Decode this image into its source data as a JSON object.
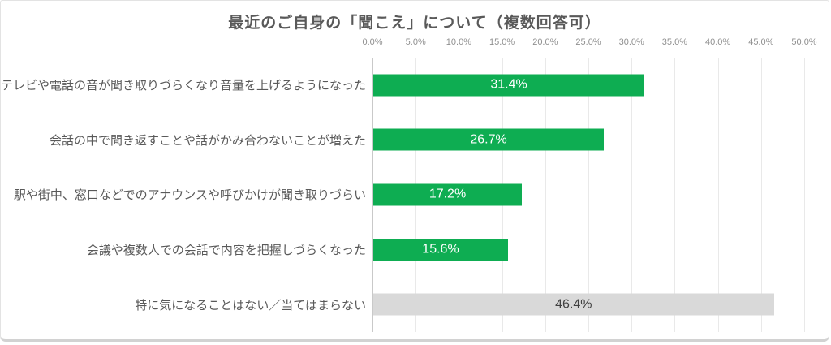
{
  "title": "最近のご自身の「聞こえ」について（複数回答可）",
  "colors": {
    "bar_green": "#0ead52",
    "bar_gray": "#d9d9d9",
    "value_label_on_green": "#ffffff",
    "value_label_on_gray": "#404040",
    "title_text": "#595959",
    "category_text": "#595959",
    "axis_text": "#8f8f8f",
    "gridline": "#e9e9e9"
  },
  "chart_data": {
    "type": "bar",
    "orientation": "horizontal",
    "title": "最近のご自身の「聞こえ」について（複数回答可）",
    "categories": [
      "テレビや電話の音が聞き取りづらくなり音量を上げるようになった",
      "会話の中で聞き返すことや話がかみ合わないことが増えた",
      "駅や街中、窓口などでのアナウンスや呼びかけが聞き取りづらい",
      "会議や複数人での会話で内容を把握しづらくなった",
      "特に気になることはない／当てはまらない"
    ],
    "values": [
      31.4,
      26.7,
      17.2,
      15.6,
      46.4
    ],
    "value_labels": [
      "31.4%",
      "26.7%",
      "17.2%",
      "15.6%",
      "46.4%"
    ],
    "bar_colors": [
      "#0ead52",
      "#0ead52",
      "#0ead52",
      "#0ead52",
      "#d9d9d9"
    ],
    "value_label_colors": [
      "#ffffff",
      "#ffffff",
      "#ffffff",
      "#ffffff",
      "#404040"
    ],
    "x_ticks": [
      "0.0%",
      "5.0%",
      "10.0%",
      "15.0%",
      "20.0%",
      "25.0%",
      "30.0%",
      "35.0%",
      "40.0%",
      "45.0%",
      "50.0%"
    ],
    "xlim": [
      0,
      50
    ],
    "grid": true,
    "legend": "none"
  }
}
